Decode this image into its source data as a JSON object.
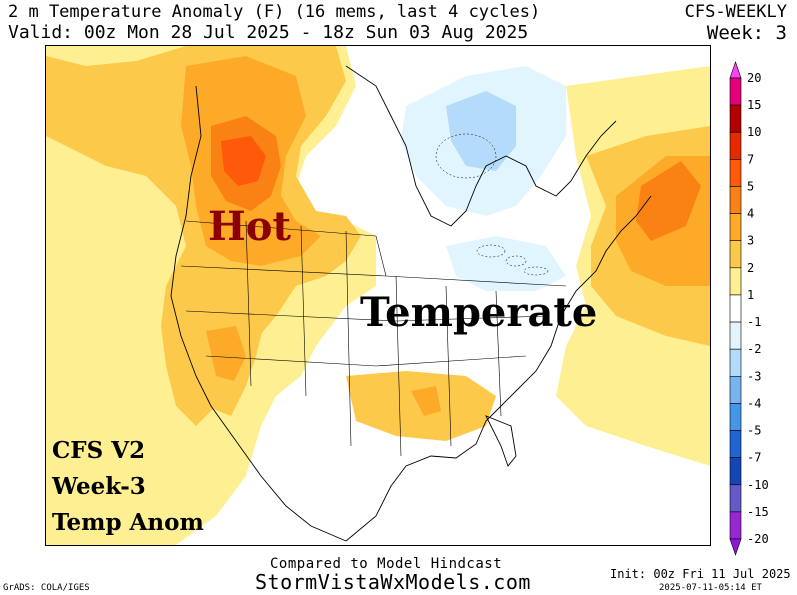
{
  "header": {
    "title": "2 m Temperature Anomaly (F) (16 mems, last 4 cycles)",
    "valid": "Valid: 00z Mon 28 Jul 2025 - 18z Sun 03 Aug 2025",
    "model": "CFS-WEEKLY",
    "week": "Week: 3"
  },
  "overlay": {
    "hot": "Hot",
    "temperate": "Temperate",
    "notes": [
      "CFS V2",
      "Week-3",
      "Temp Anom"
    ]
  },
  "colorbar": {
    "units": "F",
    "labels": [
      "20",
      "15",
      "10",
      "7",
      "5",
      "4",
      "3",
      "2",
      "1",
      "-1",
      "-2",
      "-3",
      "-4",
      "-5",
      "-7",
      "-10",
      "-15",
      "-20"
    ],
    "colors": [
      "#ff40ff",
      "#e0007a",
      "#b40000",
      "#e22b00",
      "#ff5a0a",
      "#fa8214",
      "#fdaa28",
      "#fdc94a",
      "#fef092",
      "#ffffff",
      "#e1f5ff",
      "#b4dcfa",
      "#78b4f0",
      "#4696e6",
      "#2064d2",
      "#1446b4",
      "#645ac8",
      "#9628d2",
      "#8a1ad6"
    ]
  },
  "footer": {
    "compared": "Compared to Model Hindcast",
    "website": "StormVistaWxModels.com",
    "grads": "GrADS: COLA/IGES",
    "init": "Init: 00z Fri 11 Jul 2025",
    "stamp": "2025-07-11-05:14 ET"
  }
}
